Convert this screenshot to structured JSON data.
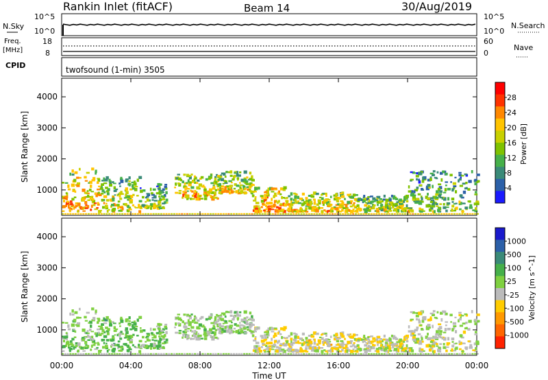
{
  "header": {
    "title": "Rankin Inlet (fitACF)",
    "beam": "Beam 14",
    "date": "30/Aug/2019"
  },
  "panels": {
    "nsky": {
      "label": "N.Sky",
      "right_label": "N.Search",
      "ticks": [
        "10^5",
        "10^0"
      ]
    },
    "freq": {
      "label_line1": "Freq.",
      "label_line2": "[MHz]",
      "ticks_left": [
        "18",
        "8"
      ],
      "ticks_right": [
        "60",
        "0"
      ],
      "right_label": "Nave"
    },
    "cpid": {
      "label": "CPID",
      "text": "twofsound (1-min) 3505"
    }
  },
  "power": {
    "ylabel": "Slant Range [km]",
    "cbar_label": "Power [dB]",
    "cbar_ticks": [
      "28",
      "24",
      "20",
      "16",
      "12",
      "8",
      "4"
    ],
    "cbar_colors": [
      "#ff0000",
      "#ff3300",
      "#ff8800",
      "#ffc400",
      "#c8d000",
      "#7fc200",
      "#46b04a",
      "#3a8a78",
      "#2c60a8",
      "#1a1aff"
    ]
  },
  "velocity": {
    "ylabel": "Slant Range [km]",
    "cbar_label": "Velocity [m s^-1]",
    "cbar_ticks": [
      "1000",
      "500",
      "100",
      "25",
      "-25",
      "-100",
      "-500",
      "-1000"
    ],
    "cbar_colors": [
      "#1a1acc",
      "#2c60a8",
      "#3a8a78",
      "#46b04a",
      "#7fd040",
      "#bbbbbb",
      "#ffcc00",
      "#ff9900",
      "#ff6600",
      "#ff2200"
    ]
  },
  "axes": {
    "y_ticks": [
      "1000",
      "2000",
      "3000",
      "4000"
    ],
    "x_ticks": [
      "00:00",
      "04:00",
      "08:00",
      "12:00",
      "16:00",
      "20:00",
      "00:00"
    ],
    "xlabel": "Time UT"
  },
  "chart_data": {
    "type": "heatmap",
    "x_range_hours": [
      0,
      24
    ],
    "y_range_km": [
      180,
      4600
    ],
    "y_ticks": [
      1000,
      2000,
      3000,
      4000
    ],
    "power_scale_db": [
      0,
      30
    ],
    "velocity_scale_ms": [
      -1000,
      1000
    ],
    "echo_bands": [
      {
        "t": [
          0.0,
          2.2
        ],
        "r": [
          300,
          1700
        ],
        "power": 22,
        "velocity": 120
      },
      {
        "t": [
          2.2,
          4.5
        ],
        "r": [
          300,
          1400
        ],
        "power": 18,
        "velocity": 200
      },
      {
        "t": [
          4.5,
          6.0
        ],
        "r": [
          400,
          1200
        ],
        "power": 14,
        "velocity": 150
      },
      {
        "t": [
          6.5,
          9.0
        ],
        "r": [
          700,
          1500
        ],
        "power": 20,
        "velocity": 60
      },
      {
        "t": [
          9.0,
          11.0
        ],
        "r": [
          900,
          1600
        ],
        "power": 18,
        "velocity": 80
      },
      {
        "t": [
          11.0,
          13.0
        ],
        "r": [
          300,
          1100
        ],
        "power": 24,
        "velocity": -150
      },
      {
        "t": [
          13.0,
          17.0
        ],
        "r": [
          300,
          900
        ],
        "power": 20,
        "velocity": -200
      },
      {
        "t": [
          17.0,
          20.0
        ],
        "r": [
          300,
          800
        ],
        "power": 16,
        "velocity": -120
      },
      {
        "t": [
          20.0,
          24.0
        ],
        "r": [
          300,
          1600
        ],
        "power": 14,
        "velocity": -60
      }
    ]
  }
}
